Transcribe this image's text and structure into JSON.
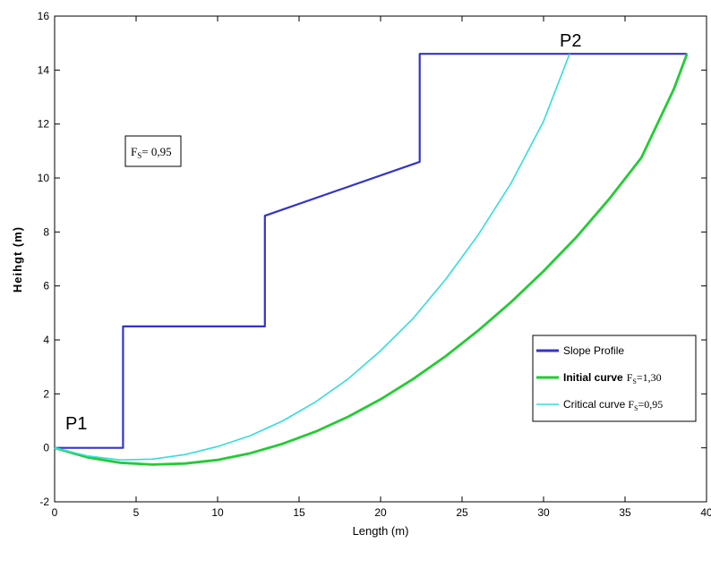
{
  "chart_data": {
    "type": "line",
    "xlabel": "Length (m)",
    "ylabel": "Heihgt (m)",
    "xlim": [
      0,
      40
    ],
    "ylim": [
      -2,
      16
    ],
    "xticks": [
      "0",
      "5",
      "10",
      "15",
      "20",
      "25",
      "30",
      "35",
      "40"
    ],
    "yticks": [
      "-2",
      "0",
      "2",
      "4",
      "6",
      "8",
      "10",
      "12",
      "14",
      "16"
    ],
    "grid": false,
    "legend_position": "bottom-right",
    "annotations": {
      "p1": "P1",
      "p2": "P2",
      "fs_box_main": "F",
      "fs_box_sub": "S",
      "fs_box_value": "= 0,95"
    },
    "series": [
      {
        "name": "Slope Profile",
        "color": "#3333cc",
        "x": [
          0,
          4.2,
          4.2,
          12.9,
          12.9,
          22.4,
          22.4,
          38.8
        ],
        "y": [
          0,
          0,
          4.5,
          4.5,
          8.6,
          10.6,
          14.6,
          14.6
        ]
      },
      {
        "name": "Initial curve",
        "legend_suffix_main": "F",
        "legend_suffix_sub": "S",
        "legend_suffix_value": "=1,30",
        "color": "#22cc33",
        "x": [
          0,
          2,
          4,
          6,
          8,
          10,
          12,
          14,
          16,
          18,
          20,
          22,
          24,
          26,
          28,
          30,
          32,
          34,
          36,
          38,
          38.8
        ],
        "y": [
          0,
          -0.35,
          -0.55,
          -0.62,
          -0.58,
          -0.45,
          -0.2,
          0.15,
          0.6,
          1.15,
          1.8,
          2.55,
          3.4,
          4.35,
          5.4,
          6.55,
          7.8,
          9.2,
          10.75,
          13.3,
          14.6
        ]
      },
      {
        "name": "Critical curve",
        "legend_suffix_main": "F",
        "legend_suffix_sub": "S",
        "legend_suffix_value": "=0,95",
        "color": "#33dddd",
        "x": [
          0,
          2,
          4,
          6,
          8,
          10,
          12,
          14,
          16,
          18,
          20,
          22,
          24,
          26,
          28,
          30,
          31.6
        ],
        "y": [
          0,
          -0.3,
          -0.45,
          -0.42,
          -0.25,
          0.05,
          0.45,
          1.0,
          1.7,
          2.55,
          3.6,
          4.8,
          6.25,
          7.9,
          9.8,
          12.1,
          14.6
        ]
      }
    ]
  }
}
